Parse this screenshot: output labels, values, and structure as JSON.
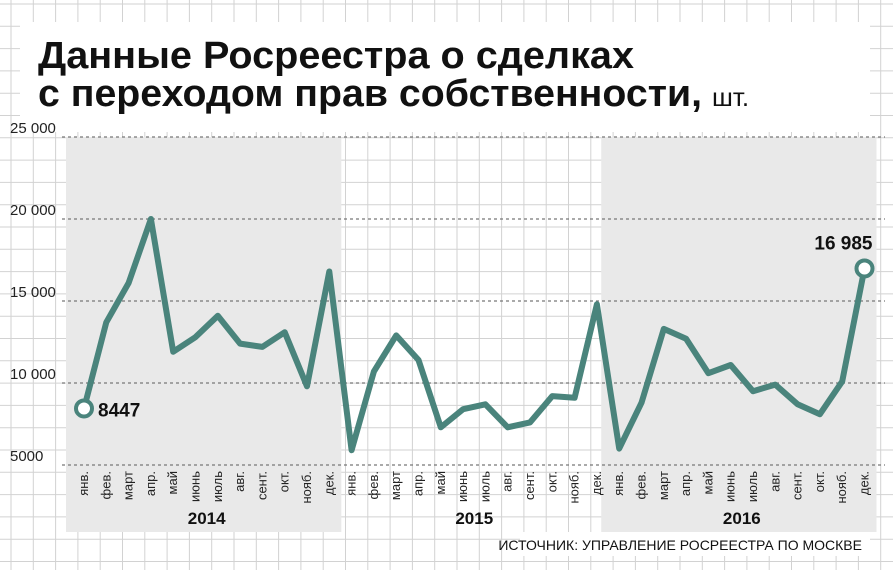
{
  "header": {
    "title_line1": "Данные Росреестра о сделках",
    "title_line2": "с переходом прав собственности,",
    "unit": "шт."
  },
  "source": "ИСТОЧНИК: УПРАВЛЕНИЕ РОСРЕЕСТРА ПО МОСКВЕ",
  "chart_data": {
    "type": "line",
    "title": "Данные Росреестра о сделках с переходом прав собственности, шт.",
    "xlabel": "",
    "ylabel": "",
    "ylim": [
      5000,
      25000
    ],
    "yticks": [
      "5000",
      "10 000",
      "15 000",
      "20 000",
      "25 000"
    ],
    "ytick_values": [
      5000,
      10000,
      15000,
      20000,
      25000
    ],
    "grid": true,
    "x": [
      "янв.",
      "фев.",
      "март",
      "апр.",
      "май",
      "июнь",
      "июль",
      "авг.",
      "сент.",
      "окт.",
      "нояб.",
      "дек.",
      "янв.",
      "фев.",
      "март",
      "апр.",
      "май",
      "июнь",
      "июль",
      "авг.",
      "сент.",
      "окт.",
      "нояб.",
      "дек.",
      "янв.",
      "фев.",
      "март",
      "апр.",
      "май",
      "июнь",
      "июль",
      "авг.",
      "сент.",
      "окт.",
      "нояб.",
      "дек."
    ],
    "years": [
      "2014",
      "2015",
      "2016"
    ],
    "series": [
      {
        "color": "#4a847c",
        "values": [
          8447,
          13700,
          16100,
          20000,
          11900,
          12800,
          14100,
          12400,
          12200,
          13100,
          9800,
          16800,
          5900,
          10700,
          12900,
          11400,
          7300,
          8400,
          8700,
          7300,
          7600,
          9200,
          9100,
          14800,
          6000,
          8800,
          13300,
          12700,
          10600,
          11100,
          9500,
          9900,
          8700,
          8100,
          10100,
          16985
        ]
      }
    ],
    "annotations": [
      {
        "index": 0,
        "text": "8447"
      },
      {
        "index": 35,
        "text": "16 985"
      }
    ]
  }
}
